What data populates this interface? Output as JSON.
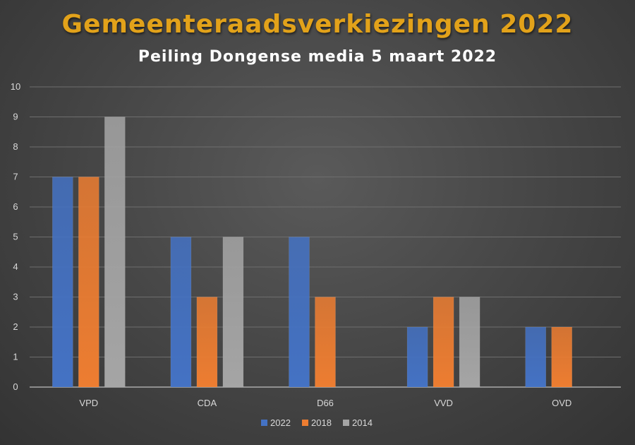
{
  "chart_data": {
    "type": "bar",
    "title": "Gemeenteraadsverkiezingen 2022",
    "subtitle": "Peiling Dongense media 5 maart 2022",
    "categories": [
      "VPD",
      "CDA",
      "D66",
      "VVD",
      "OVD"
    ],
    "series": [
      {
        "name": "2022",
        "values": [
          7,
          5,
          5,
          2,
          2
        ],
        "color": "#4472c4"
      },
      {
        "name": "2018",
        "values": [
          7,
          3,
          3,
          3,
          2
        ],
        "color": "#ed7d31"
      },
      {
        "name": "2014",
        "values": [
          9,
          5,
          0,
          3,
          0
        ],
        "color": "#a5a5a5"
      }
    ],
    "ylim": [
      0,
      10
    ],
    "yticks": [
      0,
      1,
      2,
      3,
      4,
      5,
      6,
      7,
      8,
      9,
      10
    ],
    "grid": true,
    "legend": "bottom"
  }
}
